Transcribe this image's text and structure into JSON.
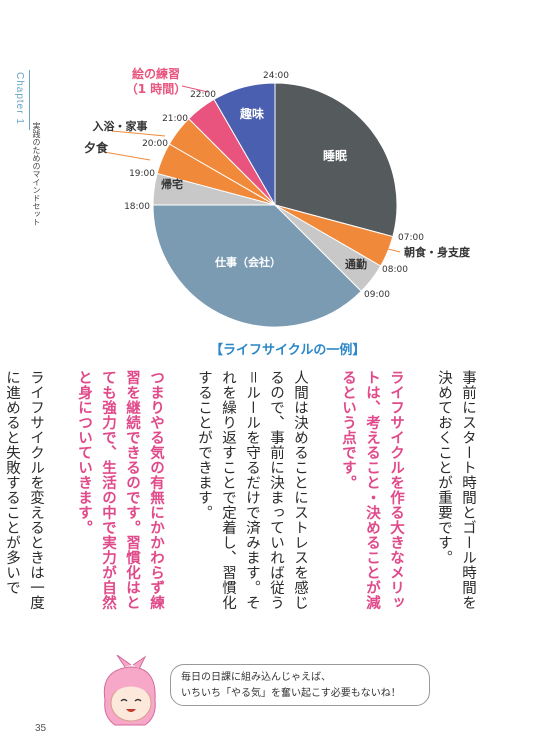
{
  "sidebar": {
    "chapter": "Chapter 1",
    "subtitle": "実践のためのマインドセット"
  },
  "chart_data": {
    "type": "pie",
    "title": "【ライフサイクルの一例】",
    "slices": [
      {
        "label": "睡眠",
        "start": "24:00",
        "end": "07:00",
        "hours": 7,
        "color": "#555a5c"
      },
      {
        "label": "朝食・身支度",
        "start": "07:00",
        "end": "08:00",
        "hours": 1,
        "color": "#f08a3a"
      },
      {
        "label": "通勤",
        "start": "08:00",
        "end": "09:00",
        "hours": 1,
        "color": "#c8c8c8"
      },
      {
        "label": "仕事（会社）",
        "start": "09:00",
        "end": "18:00",
        "hours": 9,
        "color": "#7b9bb3"
      },
      {
        "label": "帰宅",
        "start": "18:00",
        "end": "19:00",
        "hours": 1,
        "color": "#c8c8c8"
      },
      {
        "label": "夕食",
        "start": "19:00",
        "end": "20:00",
        "hours": 1,
        "color": "#f08a3a"
      },
      {
        "label": "入浴・家事",
        "start": "20:00",
        "end": "21:00",
        "hours": 1,
        "color": "#f08a3a"
      },
      {
        "label": "絵の練習\n（1 時間）",
        "start": "21:00",
        "end": "22:00",
        "hours": 1,
        "color": "#e8547e"
      },
      {
        "label": "趣味",
        "start": "22:00",
        "end": "24:00",
        "hours": 2,
        "color": "#4a5fb0"
      }
    ],
    "times": [
      "24:00",
      "07:00",
      "08:00",
      "09:00",
      "18:00",
      "19:00",
      "20:00",
      "21:00",
      "22:00"
    ]
  },
  "body": {
    "p1": "事前にスタート時間とゴール時間を決めておくことが重要です。",
    "p2a": "ライフサイクルを作る大きなメリットは、考えること・決めることが減るという点です。",
    "p2b": "人間は決めることにストレスを感じるので、事前に決まっていれば従う＝ルールを守るだけで済みます。それを繰り返すことで定着し、習慣化することができます。",
    "p3": "つまりやる気の有無にかかわらず練習を継続できるのです。習慣化はとても強力で、生活の中で実力が自然と身についていきます。",
    "p4": "ライフサイクルを変えるときは一度に進めると失敗することが多いです。"
  },
  "bubble": {
    "line1": "毎日の日課に組み込んじゃえば、",
    "line2": "いちいち「やる気」を奮い起こす必要もないね！"
  },
  "page_number": "35"
}
